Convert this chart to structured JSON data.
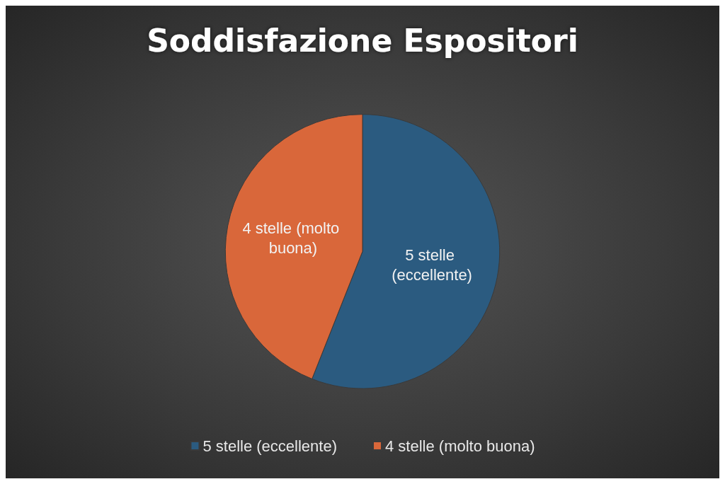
{
  "chart_data": {
    "type": "pie",
    "title": "Soddisfazione Espositori",
    "categories": [
      "5 stelle (eccellente)",
      "4 stelle (molto buona)"
    ],
    "values": [
      56,
      44
    ],
    "colors": [
      "#2b5b80",
      "#d9673a"
    ],
    "legend": "bottom"
  }
}
